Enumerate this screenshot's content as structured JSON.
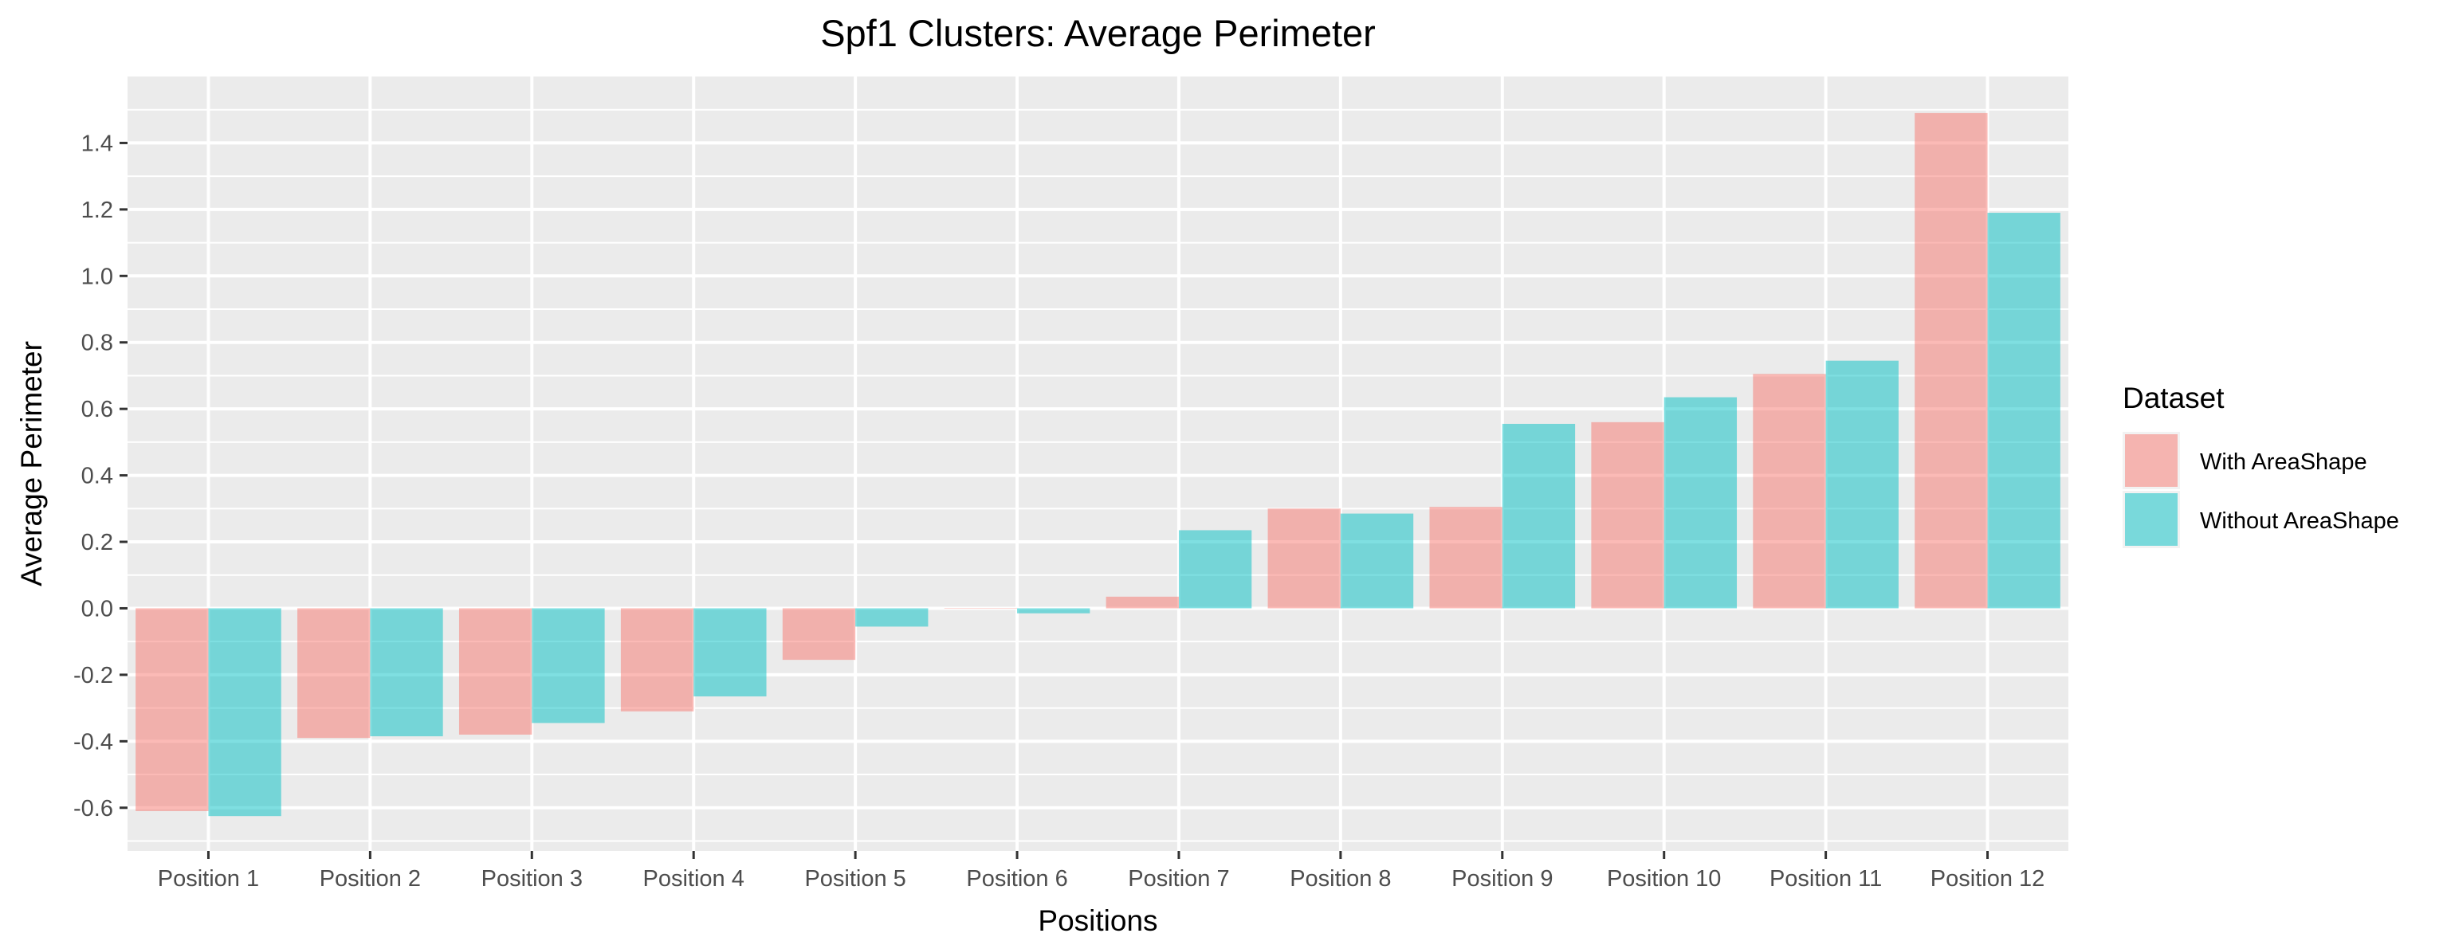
{
  "chart_data": {
    "type": "bar",
    "title": "Spf1 Clusters: Average Perimeter",
    "xlabel": "Positions",
    "ylabel": "Average Perimeter",
    "categories": [
      "Position 1",
      "Position 2",
      "Position 3",
      "Position 4",
      "Position 5",
      "Position 6",
      "Position 7",
      "Position 8",
      "Position 9",
      "Position 10",
      "Position 11",
      "Position 12"
    ],
    "series": [
      {
        "name": "With AreaShape",
        "color": "#F8766D",
        "values": [
          -0.61,
          -0.39,
          -0.38,
          -0.31,
          -0.155,
          0.0,
          0.035,
          0.3,
          0.305,
          0.56,
          0.705,
          1.49
        ]
      },
      {
        "name": "Without AreaShape",
        "color": "#00BFC4",
        "values": [
          -0.625,
          -0.385,
          -0.345,
          -0.265,
          -0.055,
          -0.015,
          0.235,
          0.285,
          0.555,
          0.635,
          0.745,
          1.19
        ]
      }
    ],
    "ylim": [
      -0.73,
      1.6
    ],
    "yticks": [
      -0.6,
      -0.4,
      -0.2,
      0.0,
      0.2,
      0.4,
      0.6,
      0.8,
      1.0,
      1.2,
      1.4
    ],
    "ytick_labels": [
      "-0.6",
      "-0.4",
      "-0.2",
      "0.0",
      "0.2",
      "0.4",
      "0.6",
      "0.8",
      "1.0",
      "1.2",
      "1.4"
    ],
    "grid": true,
    "legend": {
      "title": "Dataset",
      "position": "right"
    },
    "panel_color": "#EBEBEB",
    "bar_opacity": 0.5
  }
}
